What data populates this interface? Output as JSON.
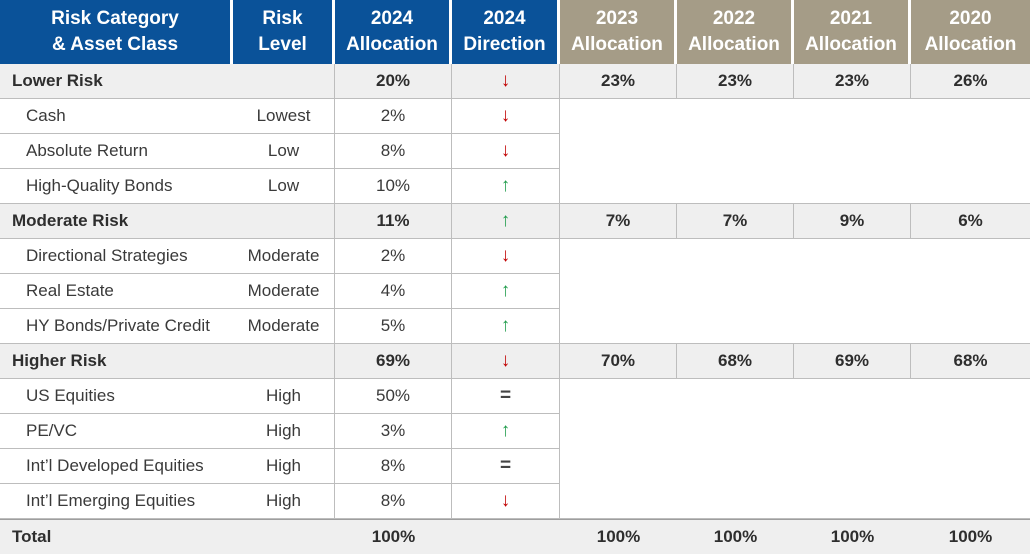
{
  "headers": {
    "category": [
      "Risk Category",
      "& Asset Class"
    ],
    "level": [
      "Risk",
      "Level"
    ],
    "alloc_2024": [
      "2024",
      "Allocation"
    ],
    "dir_2024": [
      "2024",
      "Direction"
    ],
    "y2023": [
      "2023",
      "Allocation"
    ],
    "y2022": [
      "2022",
      "Allocation"
    ],
    "y2021": [
      "2021",
      "Allocation"
    ],
    "y2020": [
      "2020",
      "Allocation"
    ]
  },
  "colors": {
    "header_blue": "#0a5299",
    "header_tan": "#a59c87",
    "down": "#c00000",
    "up": "#1e9b4a"
  },
  "rows": [
    {
      "type": "category",
      "name": "Lower Risk",
      "level": "",
      "alloc": "20%",
      "dir": "down",
      "dir_glyph": "↓",
      "hist": [
        "23%",
        "23%",
        "23%",
        "26%"
      ]
    },
    {
      "type": "sub",
      "name": "Cash",
      "level": "Lowest",
      "alloc": "2%",
      "dir": "down",
      "dir_glyph": "↓"
    },
    {
      "type": "sub",
      "name": "Absolute Return",
      "level": "Low",
      "alloc": "8%",
      "dir": "down",
      "dir_glyph": "↓"
    },
    {
      "type": "sub",
      "name": "High-Quality Bonds",
      "level": "Low",
      "alloc": "10%",
      "dir": "up",
      "dir_glyph": "↑"
    },
    {
      "type": "category",
      "name": "Moderate Risk",
      "level": "",
      "alloc": "11%",
      "dir": "up",
      "dir_glyph": "↑",
      "hist": [
        "7%",
        "7%",
        "9%",
        "6%"
      ]
    },
    {
      "type": "sub",
      "name": "Directional Strategies",
      "level": "Moderate",
      "alloc": "2%",
      "dir": "down",
      "dir_glyph": "↓"
    },
    {
      "type": "sub",
      "name": "Real Estate",
      "level": "Moderate",
      "alloc": "4%",
      "dir": "up",
      "dir_glyph": "↑"
    },
    {
      "type": "sub",
      "name": "HY Bonds/Private Credit",
      "level": "Moderate",
      "alloc": "5%",
      "dir": "up",
      "dir_glyph": "↑"
    },
    {
      "type": "category",
      "name": "Higher Risk",
      "level": "",
      "alloc": "69%",
      "dir": "down",
      "dir_glyph": "↓",
      "hist": [
        "70%",
        "68%",
        "69%",
        "68%"
      ]
    },
    {
      "type": "sub",
      "name": "US Equities",
      "level": "High",
      "alloc": "50%",
      "dir": "equal",
      "dir_glyph": "="
    },
    {
      "type": "sub",
      "name": "PE/VC",
      "level": "High",
      "alloc": "3%",
      "dir": "up",
      "dir_glyph": "↑"
    },
    {
      "type": "sub",
      "name": "Int’l Developed Equities",
      "level": "High",
      "alloc": "8%",
      "dir": "equal",
      "dir_glyph": "="
    },
    {
      "type": "sub",
      "name": "Int’l Emerging Equities",
      "level": "High",
      "alloc": "8%",
      "dir": "down",
      "dir_glyph": "↓"
    }
  ],
  "total": {
    "name": "Total",
    "alloc": "100%",
    "hist": [
      "100%",
      "100%",
      "100%",
      "100%"
    ]
  }
}
